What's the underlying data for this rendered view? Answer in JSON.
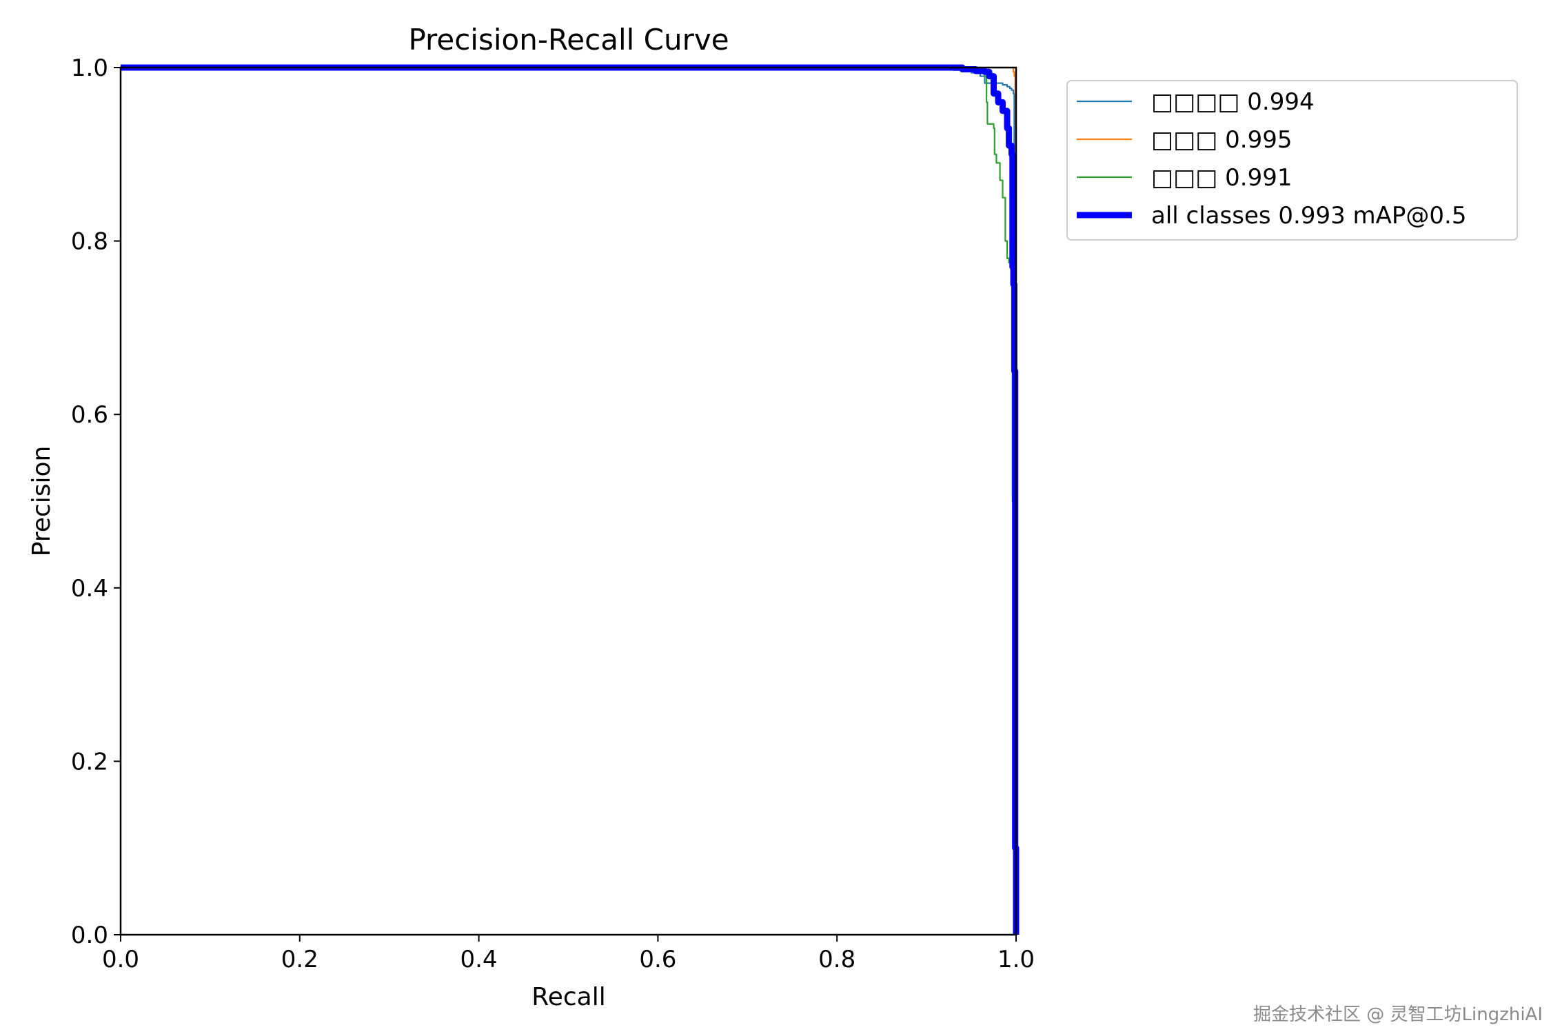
{
  "chart_data": {
    "type": "line",
    "title": "Precision-Recall Curve",
    "xlabel": "Recall",
    "ylabel": "Precision",
    "xlim": [
      0,
      1
    ],
    "ylim": [
      0,
      1
    ],
    "xticks": [
      "0.0",
      "0.2",
      "0.4",
      "0.6",
      "0.8",
      "1.0"
    ],
    "yticks": [
      "0.0",
      "0.2",
      "0.4",
      "0.6",
      "0.8",
      "1.0"
    ],
    "grid": false,
    "legend_position": "outside-right-top",
    "series": [
      {
        "name": "□□□□ 0.994",
        "color": "#1f77b4",
        "width": "thin",
        "x": [
          0,
          0.9,
          0.93,
          0.95,
          0.96,
          0.965,
          0.985,
          0.99,
          0.993,
          0.995,
          0.997,
          0.998,
          0.999,
          0.999,
          1.0
        ],
        "y": [
          1.0,
          1.0,
          0.997,
          0.994,
          0.99,
          0.982,
          0.98,
          0.978,
          0.976,
          0.974,
          0.97,
          0.6,
          0.3,
          0.1,
          0.0
        ]
      },
      {
        "name": "□□□ 0.995",
        "color": "#ff7f0e",
        "width": "thin",
        "x": [
          0,
          0.995,
          0.997,
          0.998,
          0.999,
          0.9995,
          1.0,
          1.0
        ],
        "y": [
          1.0,
          1.0,
          0.995,
          0.99,
          0.97,
          0.93,
          0.9,
          0.0
        ]
      },
      {
        "name": "□□□ 0.991",
        "color": "#2ca02c",
        "width": "thin",
        "x": [
          0,
          0.93,
          0.96,
          0.965,
          0.967,
          0.968,
          0.975,
          0.976,
          0.978,
          0.982,
          0.985,
          0.988,
          0.99,
          0.992,
          0.994,
          0.995,
          0.996,
          0.997,
          0.998,
          0.999,
          1.0
        ],
        "y": [
          1.0,
          1.0,
          0.998,
          0.99,
          0.96,
          0.935,
          0.93,
          0.9,
          0.89,
          0.87,
          0.85,
          0.8,
          0.78,
          0.775,
          0.77,
          0.76,
          0.5,
          0.3,
          0.15,
          0.05,
          0.0
        ]
      },
      {
        "name": "all classes 0.993 mAP@0.5",
        "color": "#0000ff",
        "width": "thick",
        "x": [
          0,
          0.92,
          0.94,
          0.955,
          0.965,
          0.97,
          0.975,
          0.98,
          0.985,
          0.99,
          0.992,
          0.995,
          0.996,
          0.997,
          0.998,
          0.999,
          0.999,
          1.0
        ],
        "y": [
          1.0,
          1.0,
          0.998,
          0.996,
          0.995,
          0.99,
          0.97,
          0.96,
          0.95,
          0.93,
          0.91,
          0.9,
          0.77,
          0.75,
          0.65,
          0.32,
          0.1,
          0.0
        ]
      }
    ]
  },
  "watermark": "掘金技术社区 @ 灵智工坊LingzhiAI"
}
